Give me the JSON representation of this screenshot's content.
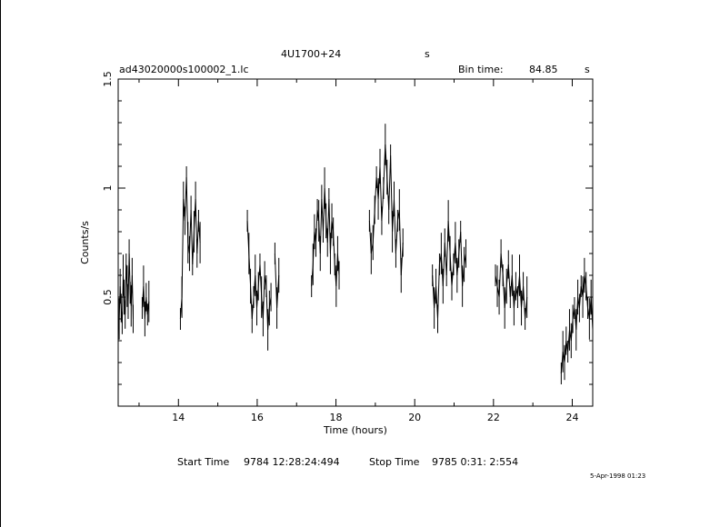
{
  "header": {
    "source_name": "4U1700+24",
    "source_suffix": "s",
    "file_name": "ad43020000s100002_1.lc",
    "bin_label": "Bin time:",
    "bin_value": "84.85",
    "bin_unit": "s"
  },
  "footer": {
    "start_label": "Start Time",
    "start_value": "9784 12:28:24:494",
    "stop_label": "Stop Time",
    "stop_value": "9785  0:31: 2:554",
    "date_stamp": "5-Apr-1998 01:23"
  },
  "chart_data": {
    "type": "line",
    "title": "4U1700+24",
    "xlabel": "Time (hours)",
    "ylabel": "Counts/s",
    "xlim": [
      12.47,
      24.52
    ],
    "ylim": [
      0.0,
      1.5
    ],
    "x_ticks": [
      14,
      16,
      18,
      20,
      22,
      24
    ],
    "y_ticks": [
      0.5,
      1,
      1.5
    ],
    "y_tick_labels": [
      "0.5",
      "1",
      "1.5"
    ],
    "grid": false,
    "segments": [
      {
        "x_start": 12.47,
        "x_end": 12.85,
        "y": [
          0.32,
          0.4,
          0.55,
          0.45,
          0.38,
          0.6,
          0.5,
          0.42,
          0.65,
          0.55,
          0.48,
          0.7,
          0.52,
          0.46,
          0.6,
          0.4
        ]
      },
      {
        "x_start": 13.08,
        "x_end": 13.25,
        "y": [
          0.45,
          0.55,
          0.4,
          0.5,
          0.42,
          0.48
        ]
      },
      {
        "x_start": 14.05,
        "x_end": 14.55,
        "y": [
          0.4,
          0.5,
          0.95,
          0.85,
          1.05,
          0.75,
          0.7,
          0.9,
          0.65,
          0.8,
          0.95,
          0.7,
          0.85,
          0.75
        ]
      },
      {
        "x_start": 15.75,
        "x_end": 16.35,
        "y": [
          0.85,
          0.7,
          0.55,
          0.4,
          0.5,
          0.6,
          0.45,
          0.55,
          0.65,
          0.5,
          0.4,
          0.6,
          0.55,
          0.35,
          0.45,
          0.5
        ]
      },
      {
        "x_start": 16.45,
        "x_end": 16.55,
        "y": [
          0.7,
          0.45,
          0.6
        ]
      },
      {
        "x_start": 17.38,
        "x_end": 18.08,
        "y": [
          0.55,
          0.65,
          0.8,
          0.75,
          0.9,
          0.85,
          0.7,
          0.95,
          0.8,
          1.0,
          0.85,
          0.75,
          0.95,
          0.7,
          0.85,
          0.8,
          0.65,
          0.55,
          0.7,
          0.6
        ]
      },
      {
        "x_start": 18.85,
        "x_end": 19.7,
        "y": [
          0.85,
          0.7,
          0.75,
          0.9,
          1.05,
          0.95,
          1.1,
          0.85,
          1.0,
          1.2,
          1.05,
          0.9,
          1.15,
          0.8,
          0.95,
          0.7,
          0.85,
          0.9,
          0.6,
          0.75
        ]
      },
      {
        "x_start": 20.45,
        "x_end": 21.3,
        "y": [
          0.6,
          0.45,
          0.55,
          0.4,
          0.65,
          0.7,
          0.55,
          0.75,
          0.6,
          0.85,
          0.7,
          0.55,
          0.65,
          0.75,
          0.6,
          0.7,
          0.8,
          0.55,
          0.65,
          0.7
        ]
      },
      {
        "x_start": 22.05,
        "x_end": 22.85,
        "y": [
          0.6,
          0.55,
          0.5,
          0.7,
          0.6,
          0.45,
          0.55,
          0.65,
          0.5,
          0.6,
          0.45,
          0.55,
          0.5,
          0.6,
          0.45,
          0.55,
          0.4,
          0.5
        ]
      },
      {
        "x_start": 23.72,
        "x_end": 24.52,
        "y": [
          0.15,
          0.25,
          0.2,
          0.3,
          0.25,
          0.35,
          0.3,
          0.4,
          0.45,
          0.35,
          0.5,
          0.45,
          0.55,
          0.5,
          0.6,
          0.55,
          0.45,
          0.4,
          0.5,
          0.35
        ]
      }
    ]
  }
}
